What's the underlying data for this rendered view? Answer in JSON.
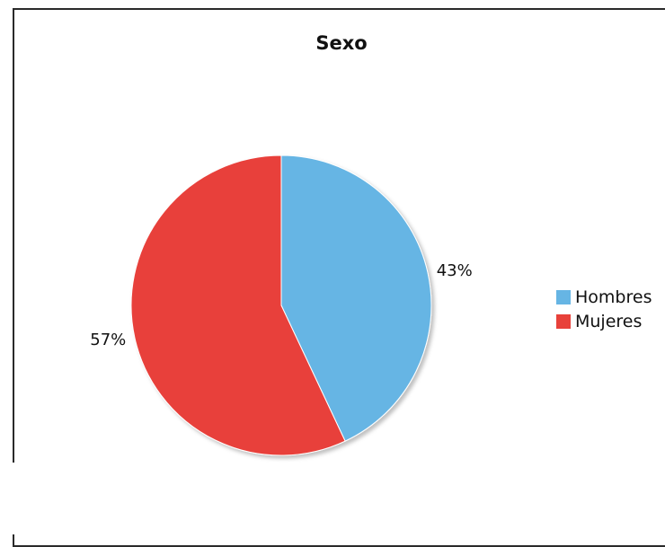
{
  "chart_data": {
    "type": "pie",
    "title": "Sexo",
    "slices": [
      {
        "label": "Hombres",
        "value": 43,
        "display": "43%",
        "color": "#66b5e4"
      },
      {
        "label": "Mujeres",
        "value": 57,
        "display": "57%",
        "color": "#e8413a"
      }
    ],
    "legend_position": "right",
    "start_angle": "top",
    "direction": "clockwise"
  }
}
